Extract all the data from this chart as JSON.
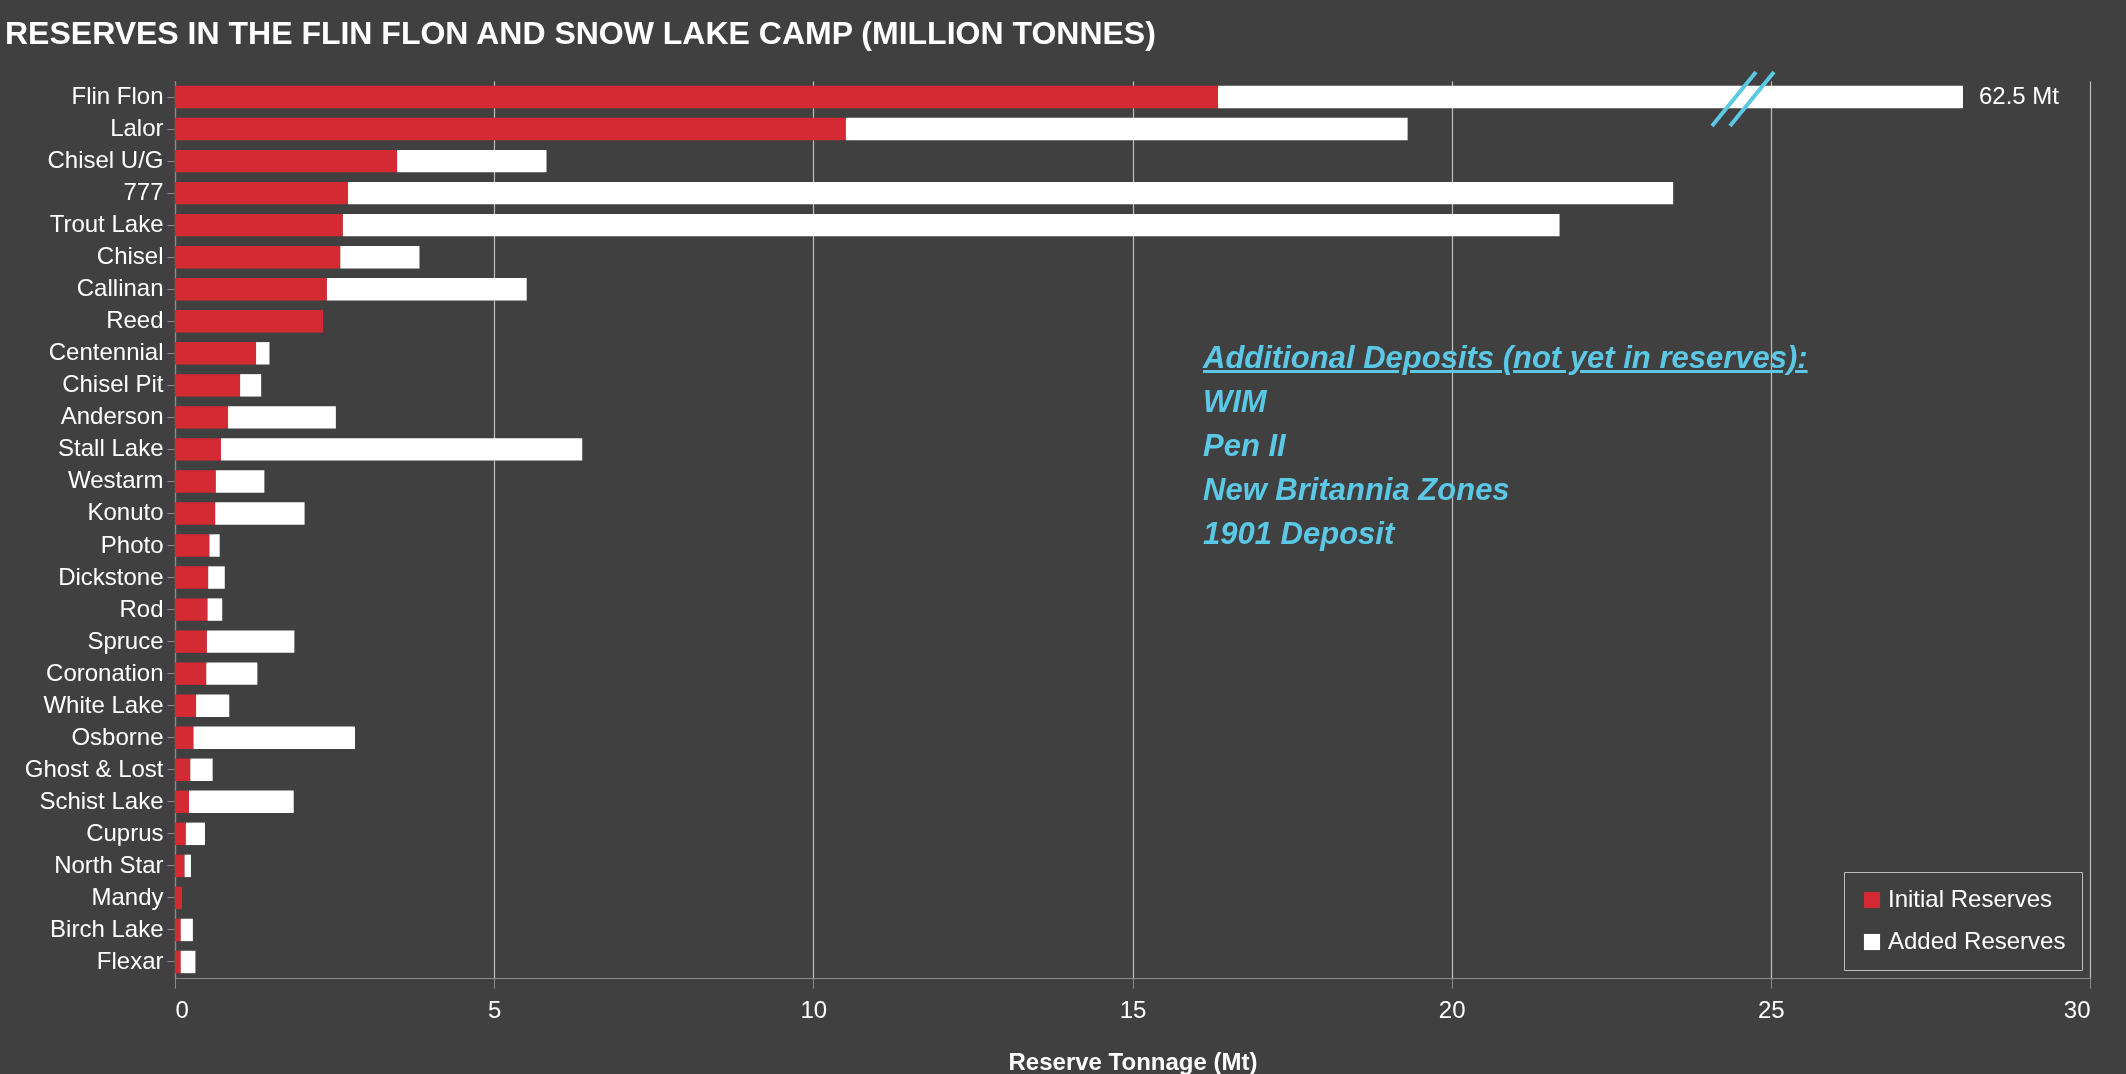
{
  "chart_data": {
    "type": "bar",
    "orientation": "horizontal",
    "stacked": true,
    "title": "RESERVES IN THE FLIN FLON AND SNOW LAKE CAMP (MILLION TONNES)",
    "xlabel": "Reserve Tonnage (Mt)",
    "categories": [
      "Flin Flon",
      "Lalor",
      "Chisel U/G",
      "777",
      "Trout Lake",
      "Chisel",
      "Callinan",
      "Reed",
      "Centennial",
      "Chisel Pit",
      "Anderson",
      "Stall Lake",
      "Westarm",
      "Konuto",
      "Photo",
      "Dickstone",
      "Rod",
      "Spruce",
      "Coronation",
      "White Lake",
      "Osborne",
      "Ghost & Lost",
      "Schist Lake",
      "Cuprus",
      "North Star",
      "Mandy",
      "Birch Lake",
      "Flexar"
    ],
    "series": [
      {
        "name": "Initial Reserves",
        "color": "#d42a33",
        "values": [
          16.34,
          10.51,
          3.48,
          2.71,
          2.63,
          2.59,
          2.38,
          2.32,
          1.27,
          1.02,
          0.83,
          0.72,
          0.64,
          0.63,
          0.54,
          0.52,
          0.51,
          0.5,
          0.49,
          0.33,
          0.29,
          0.24,
          0.22,
          0.17,
          0.15,
          0.11,
          0.09,
          0.09
        ]
      },
      {
        "name": "Added Reserves",
        "color": "#ffffff",
        "values": [
          11.67,
          8.8,
          2.34,
          20.76,
          19.06,
          1.24,
          3.13,
          null,
          0.21,
          0.33,
          1.69,
          5.66,
          0.76,
          1.4,
          0.16,
          0.26,
          0.23,
          1.37,
          0.8,
          0.52,
          2.53,
          0.35,
          1.64,
          0.3,
          0.1,
          null,
          0.19,
          0.23
        ]
      }
    ],
    "xlim": [
      0,
      30
    ],
    "xticks": [
      0,
      5,
      10,
      15,
      20,
      25,
      30
    ],
    "grid": "x",
    "legend": "bottom right",
    "annotations": [
      "Additional Deposits (not yet in reserves):",
      "WIM",
      "Pen II",
      "New Britannia Zones",
      "1901 Deposit",
      {
        "text": "62.5 Mt",
        "x": 28.01,
        "y": "Flin Flon"
      }
    ]
  }
}
